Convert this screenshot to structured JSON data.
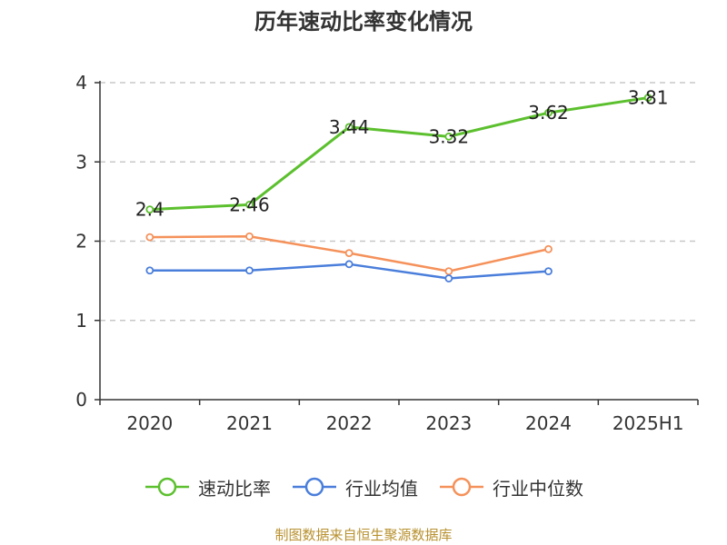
{
  "chart_data": {
    "type": "line",
    "title": "历年速动比率变化情况",
    "categories": [
      "2020",
      "2021",
      "2022",
      "2023",
      "2024",
      "2025H1"
    ],
    "y_ticks": [
      "0",
      "1",
      "2",
      "3",
      "4"
    ],
    "ylim": [
      0,
      4
    ],
    "grid": true,
    "legend_position": "bottom",
    "series": [
      {
        "name": "速动比率",
        "color": "#5cc02e",
        "values": [
          2.4,
          2.46,
          3.44,
          3.32,
          3.62,
          3.81
        ],
        "labels": [
          "2.4",
          "2.46",
          "3.44",
          "3.32",
          "3.62",
          "3.81"
        ]
      },
      {
        "name": "行业均值",
        "color": "#4a7edb",
        "values": [
          1.63,
          1.63,
          1.71,
          1.53,
          1.62,
          null
        ]
      },
      {
        "name": "行业中位数",
        "color": "#f5915a",
        "values": [
          2.05,
          2.06,
          1.85,
          1.62,
          1.9,
          null
        ]
      }
    ]
  },
  "source_note": "制图数据来自恒生聚源数据库"
}
